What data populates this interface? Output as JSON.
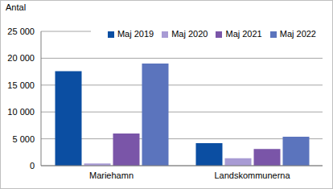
{
  "chart_data": {
    "type": "bar",
    "y_label": "Antal",
    "categories": [
      "Mariehamn",
      "Landskommunerna"
    ],
    "series": [
      {
        "name": "Maj 2019",
        "color": "#0b4ea2",
        "values": [
          17600,
          4200
        ]
      },
      {
        "name": "Maj 2020",
        "color": "#a89bd4",
        "values": [
          400,
          1400
        ]
      },
      {
        "name": "Maj 2021",
        "color": "#7a55a8",
        "values": [
          6000,
          3100
        ]
      },
      {
        "name": "Maj 2022",
        "color": "#5b74bd",
        "values": [
          19000,
          5400
        ]
      }
    ],
    "ylim": [
      0,
      25000
    ],
    "yticks": [
      0,
      {
        "value": 5000,
        "label": "5 000"
      },
      {
        "value": 10000,
        "label": "10 000"
      },
      {
        "value": 15000,
        "label": "15 000"
      },
      {
        "value": 20000,
        "label": "20 000"
      },
      {
        "value": 25000,
        "label": "25 000"
      }
    ],
    "grid": true,
    "legend": "top"
  }
}
